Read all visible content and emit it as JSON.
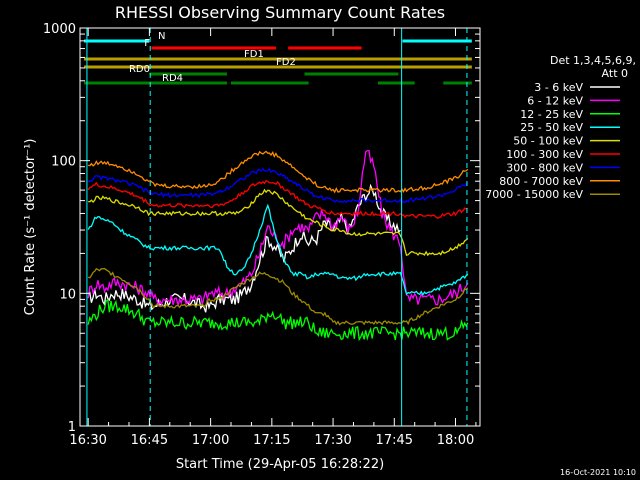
{
  "chart_data": {
    "type": "line",
    "title": "RHESSI Observing Summary Count Rates",
    "xlabel": "Start Time (29-Apr-05 16:28:22)",
    "ylabel": "Count Rate (s⁻¹ detector⁻¹)",
    "y_scale": "log",
    "ylim": [
      1,
      1000
    ],
    "xlim_minutes": [
      -2,
      96
    ],
    "x_ticks": [
      {
        "t": 0,
        "label": "16:30"
      },
      {
        "t": 15,
        "label": "16:45"
      },
      {
        "t": 30,
        "label": "17:00"
      },
      {
        "t": 45,
        "label": "17:15"
      },
      {
        "t": 60,
        "label": "17:30"
      },
      {
        "t": 75,
        "label": "17:45"
      },
      {
        "t": 90,
        "label": "18:00"
      }
    ],
    "y_ticks": [
      {
        "v": 1,
        "label": "1"
      },
      {
        "v": 10,
        "label": "10"
      },
      {
        "v": 100,
        "label": "100"
      },
      {
        "v": 1000,
        "label": "1000"
      }
    ],
    "legend": {
      "header": [
        "Det 1,3,4,5,6,9,",
        "Att 0"
      ],
      "placement": "right"
    },
    "timestamp": "16-Oct-2021 10:10",
    "flags": [
      {
        "label": "N",
        "color": "#00ffff",
        "segments": [
          [
            -1,
            15
          ],
          [
            77,
            94
          ]
        ]
      },
      {
        "label": "F",
        "color": "#ff0000",
        "segments": [
          [
            15.5,
            46
          ],
          [
            49,
            67
          ]
        ]
      },
      {
        "label": "FD1",
        "color": "#b8a000",
        "segments": [
          [
            -1,
            94
          ]
        ]
      },
      {
        "label": "FD2",
        "color": "#b8a000",
        "segments": [
          [
            -1,
            94
          ]
        ]
      },
      {
        "label": "RD0",
        "color": "#008000",
        "segments": [
          [
            15,
            34
          ],
          [
            53,
            76
          ]
        ]
      },
      {
        "label": "RD4",
        "color": "#008000",
        "segments": [
          [
            -1,
            34
          ],
          [
            35,
            54
          ],
          [
            71,
            80
          ],
          [
            87,
            94
          ]
        ]
      }
    ],
    "vlines": [
      {
        "t": -0.3,
        "style": "solid"
      },
      {
        "t": 15.2,
        "style": "dashed"
      },
      {
        "t": 76.8,
        "style": "solid"
      },
      {
        "t": 92.8,
        "style": "dashed"
      }
    ],
    "series": [
      {
        "name": "3 - 6 keV",
        "color": "#ffffff",
        "t": [
          0,
          2,
          4,
          6,
          8,
          12,
          14.8,
          16,
          20,
          24,
          28,
          30,
          32,
          34,
          36,
          38,
          40,
          42,
          44,
          46,
          48,
          50,
          52,
          54,
          56,
          58,
          60,
          62,
          64,
          66,
          68,
          70,
          72,
          74,
          76.5
        ],
        "v": [
          9,
          10,
          9,
          10,
          10,
          9,
          8,
          8,
          9,
          9,
          8,
          8,
          9,
          9,
          9,
          10,
          12,
          18,
          26,
          22,
          18,
          22,
          28,
          24,
          26,
          34,
          30,
          36,
          30,
          44,
          56,
          60,
          40,
          34,
          30
        ]
      },
      {
        "name": "6 - 12 keV",
        "color": "#ff00ff",
        "t": [
          0,
          2,
          4,
          6,
          8,
          12,
          14.8,
          16,
          20,
          24,
          28,
          30,
          32,
          34,
          36,
          38,
          40,
          42,
          44,
          46,
          48,
          50,
          52,
          54,
          56,
          58,
          60,
          62,
          64,
          66,
          68,
          70,
          72,
          74,
          76.5,
          78,
          82,
          86,
          90,
          93
        ],
        "v": [
          10,
          12,
          11,
          12,
          12,
          11,
          10,
          9,
          9,
          9,
          9,
          10,
          10,
          10,
          11,
          12,
          14,
          20,
          32,
          26,
          24,
          30,
          32,
          30,
          38,
          40,
          32,
          38,
          30,
          40,
          120,
          90,
          40,
          30,
          24,
          9,
          9,
          9,
          10,
          12
        ]
      },
      {
        "name": "12 - 25 keV",
        "color": "#00ff00",
        "t": [
          0,
          2,
          4,
          6,
          8,
          12,
          14.8,
          16,
          20,
          24,
          28,
          32,
          34,
          36,
          38,
          40,
          42,
          44,
          46,
          48,
          50,
          52,
          54,
          56,
          58,
          60,
          62,
          64,
          66,
          68,
          70,
          72,
          74,
          76.5,
          78,
          82,
          86,
          90,
          93
        ],
        "v": [
          6,
          7,
          8,
          8,
          8,
          7,
          6,
          6,
          6,
          6,
          6,
          6,
          6,
          6,
          6,
          6,
          6,
          7,
          7,
          6,
          6,
          6,
          6,
          5,
          5,
          5,
          5,
          5,
          5,
          5,
          5,
          5,
          5,
          5,
          5,
          5,
          5,
          5,
          6
        ]
      },
      {
        "name": "25 - 50 keV",
        "color": "#00ffff",
        "t": [
          0,
          2,
          4,
          6,
          8,
          12,
          14.8,
          16,
          20,
          24,
          28,
          30,
          32,
          34,
          36,
          38,
          40,
          42,
          44,
          46,
          48,
          50,
          52,
          54,
          56,
          58,
          60,
          62,
          64,
          66,
          68,
          70,
          72,
          74,
          76.5,
          78,
          82,
          86,
          90,
          93
        ],
        "v": [
          30,
          38,
          36,
          34,
          30,
          25,
          22,
          22,
          22,
          22,
          22,
          22,
          22,
          16,
          14,
          15,
          20,
          30,
          46,
          26,
          18,
          14,
          14,
          13,
          14,
          14,
          14,
          13,
          13,
          13,
          14,
          14,
          14,
          14,
          14,
          10,
          10,
          11,
          12,
          14
        ]
      },
      {
        "name": "50 - 100 keV",
        "color": "#dddd00",
        "t": [
          0,
          2,
          4,
          6,
          8,
          12,
          14.8,
          16,
          20,
          24,
          28,
          30,
          32,
          34,
          36,
          38,
          40,
          42,
          44,
          46,
          48,
          50,
          52,
          54,
          56,
          58,
          60,
          62,
          64,
          66,
          68,
          70,
          72,
          74,
          76.5,
          78,
          82,
          86,
          90,
          93
        ],
        "v": [
          48,
          52,
          52,
          50,
          48,
          45,
          40,
          40,
          40,
          40,
          40,
          40,
          40,
          40,
          40,
          42,
          48,
          56,
          60,
          56,
          50,
          44,
          40,
          36,
          34,
          32,
          30,
          30,
          28,
          28,
          28,
          28,
          28,
          28,
          28,
          20,
          20,
          20,
          22,
          26
        ]
      },
      {
        "name": "100 - 300 keV",
        "color": "#ff0000",
        "t": [
          0,
          2,
          4,
          6,
          8,
          12,
          14.8,
          16,
          20,
          24,
          28,
          30,
          32,
          34,
          36,
          38,
          40,
          42,
          44,
          46,
          48,
          50,
          52,
          54,
          56,
          58,
          60,
          62,
          64,
          66,
          68,
          70,
          72,
          74,
          76.5,
          78,
          82,
          86,
          90,
          93
        ],
        "v": [
          62,
          66,
          64,
          62,
          60,
          54,
          48,
          46,
          46,
          46,
          46,
          46,
          46,
          48,
          52,
          58,
          64,
          68,
          70,
          68,
          62,
          56,
          50,
          46,
          44,
          42,
          40,
          40,
          40,
          40,
          40,
          40,
          40,
          40,
          40,
          38,
          38,
          38,
          40,
          44
        ]
      },
      {
        "name": "300 - 800 keV",
        "color": "#0000ff",
        "t": [
          0,
          2,
          4,
          6,
          8,
          12,
          14.8,
          16,
          20,
          24,
          28,
          30,
          32,
          34,
          36,
          38,
          40,
          42,
          44,
          46,
          48,
          50,
          52,
          54,
          56,
          58,
          60,
          62,
          64,
          66,
          68,
          70,
          72,
          74,
          76.5,
          78,
          82,
          86,
          90,
          93
        ],
        "v": [
          70,
          75,
          74,
          72,
          70,
          64,
          58,
          56,
          55,
          55,
          55,
          56,
          58,
          62,
          68,
          74,
          80,
          84,
          85,
          82,
          76,
          70,
          64,
          58,
          54,
          52,
          50,
          50,
          50,
          50,
          50,
          50,
          50,
          50,
          50,
          50,
          52,
          54,
          60,
          68
        ]
      },
      {
        "name": "800 - 7000 keV",
        "color": "#ff8c00",
        "t": [
          0,
          2,
          4,
          6,
          8,
          12,
          14.8,
          16,
          20,
          24,
          28,
          30,
          32,
          34,
          36,
          38,
          40,
          42,
          44,
          46,
          48,
          50,
          52,
          54,
          56,
          58,
          60,
          62,
          64,
          66,
          68,
          70,
          72,
          74,
          76.5,
          78,
          82,
          86,
          90,
          93
        ],
        "v": [
          92,
          96,
          96,
          94,
          90,
          80,
          70,
          66,
          64,
          64,
          64,
          66,
          70,
          78,
          88,
          98,
          108,
          114,
          115,
          110,
          100,
          90,
          80,
          72,
          66,
          62,
          60,
          60,
          60,
          60,
          60,
          60,
          60,
          60,
          60,
          60,
          62,
          66,
          74,
          86
        ]
      },
      {
        "name": "7000 - 15000 keV",
        "color": "#9b8b00",
        "t": [
          0,
          2,
          4,
          6,
          8,
          12,
          14.8,
          16,
          20,
          24,
          28,
          30,
          32,
          34,
          36,
          38,
          40,
          42,
          44,
          46,
          48,
          50,
          52,
          54,
          56,
          58,
          60,
          62,
          64,
          66,
          68,
          70,
          72,
          74,
          76.5,
          78,
          82,
          86,
          90,
          93
        ],
        "v": [
          13,
          15,
          15,
          14,
          13,
          11,
          9,
          8,
          8,
          8,
          8,
          9,
          9,
          10,
          11,
          12,
          13,
          14,
          14,
          13,
          12,
          10,
          9,
          8,
          7,
          7,
          6,
          6,
          6,
          6,
          6,
          6,
          6,
          6,
          6,
          6,
          7,
          8,
          9,
          11
        ]
      }
    ]
  }
}
